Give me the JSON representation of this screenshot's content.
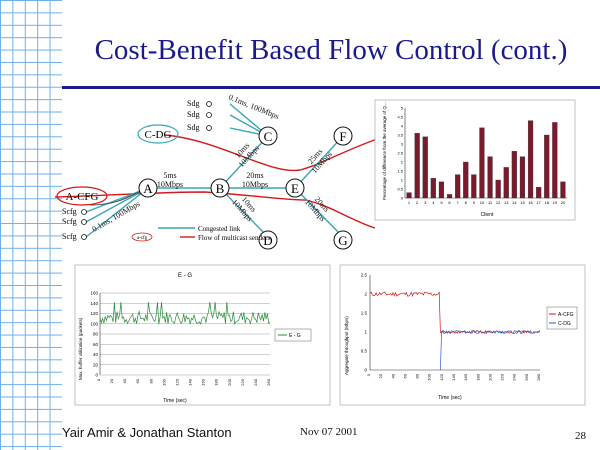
{
  "slide": {
    "title": "Cost-Benefit Based Flow Control (cont.)",
    "author": "Yair Amir & Jonathan Stanton",
    "date": "Nov 07 2001",
    "page_number": "28"
  },
  "network": {
    "nodes": {
      "A": "A",
      "B": "B",
      "C": "C",
      "D": "D",
      "E": "E",
      "F": "F",
      "G": "G",
      "cdg": "C-DG",
      "acfg": "A-CFG"
    },
    "senders_top": [
      "Sdg",
      "Sdg",
      "Sdg"
    ],
    "senders_left": [
      "Scfg",
      "Scfg",
      "Scfg"
    ],
    "link_labels": {
      "top_access": "0.1ms, 100Mbps",
      "left_access": "0.1ms, 100Mbps",
      "ab": "5ms\n10Mbps",
      "be": "20ms\n10Mbps",
      "bc": "10ms\n10Mbps",
      "bd": "10ms\n10Mbps",
      "ef": "25ms\n10Mbps",
      "eg": "20ms\n10Mbps"
    },
    "legend": {
      "congested_link": "Congested link",
      "flow_label": "Flow of multicast senders",
      "flow_symbol": "a-cfg"
    }
  },
  "chart_data": [
    {
      "id": "bar-chart",
      "type": "bar",
      "xlabel": "Client",
      "ylabel": "Percentage of difference from the average of Q...",
      "ylim": [
        0,
        5
      ],
      "ytick_step": 0.5,
      "categories": [
        "1",
        "2",
        "3",
        "4",
        "5",
        "6",
        "7",
        "8",
        "9",
        "10",
        "11",
        "12",
        "13",
        "14",
        "15",
        "16",
        "17",
        "18",
        "19",
        "20"
      ],
      "values": [
        0.3,
        3.6,
        3.4,
        1.1,
        0.9,
        0.2,
        1.3,
        2.0,
        1.3,
        3.9,
        2.3,
        1.0,
        1.7,
        2.6,
        2.3,
        4.3,
        0.6,
        3.5,
        4.2,
        0.9
      ],
      "bar_color": "#7a1a2c"
    },
    {
      "id": "line-chart-left",
      "type": "line",
      "title": "E - G",
      "xlabel": "Time (sec)",
      "ylabel": "Max. buffer utilization (packets)",
      "ylim": [
        0,
        160
      ],
      "ytick_step": 20,
      "xlim": [
        0,
        260
      ],
      "xticks": [
        0,
        20,
        40,
        60,
        80,
        100,
        120,
        140,
        160,
        180,
        200,
        220,
        240,
        260
      ],
      "series": [
        {
          "name": "E - G",
          "color": "#2a8a3a",
          "base": 112,
          "jitter": 13
        }
      ],
      "legend": "right"
    },
    {
      "id": "line-chart-right",
      "type": "line",
      "xlabel": "Time (sec)",
      "ylabel": "Aggregate throughput (Mbps)",
      "ylim": [
        0,
        2.5
      ],
      "ytick_step": 0.5,
      "xlim": [
        0,
        280
      ],
      "xticks": [
        0,
        20,
        40,
        60,
        80,
        100,
        120,
        140,
        160,
        180,
        200,
        220,
        240,
        260,
        280
      ],
      "series": [
        {
          "name": "A-CFG",
          "color": "#cc1a1a"
        },
        {
          "name": "C-DG",
          "color": "#2a5ad0"
        }
      ],
      "legend": "right"
    }
  ]
}
